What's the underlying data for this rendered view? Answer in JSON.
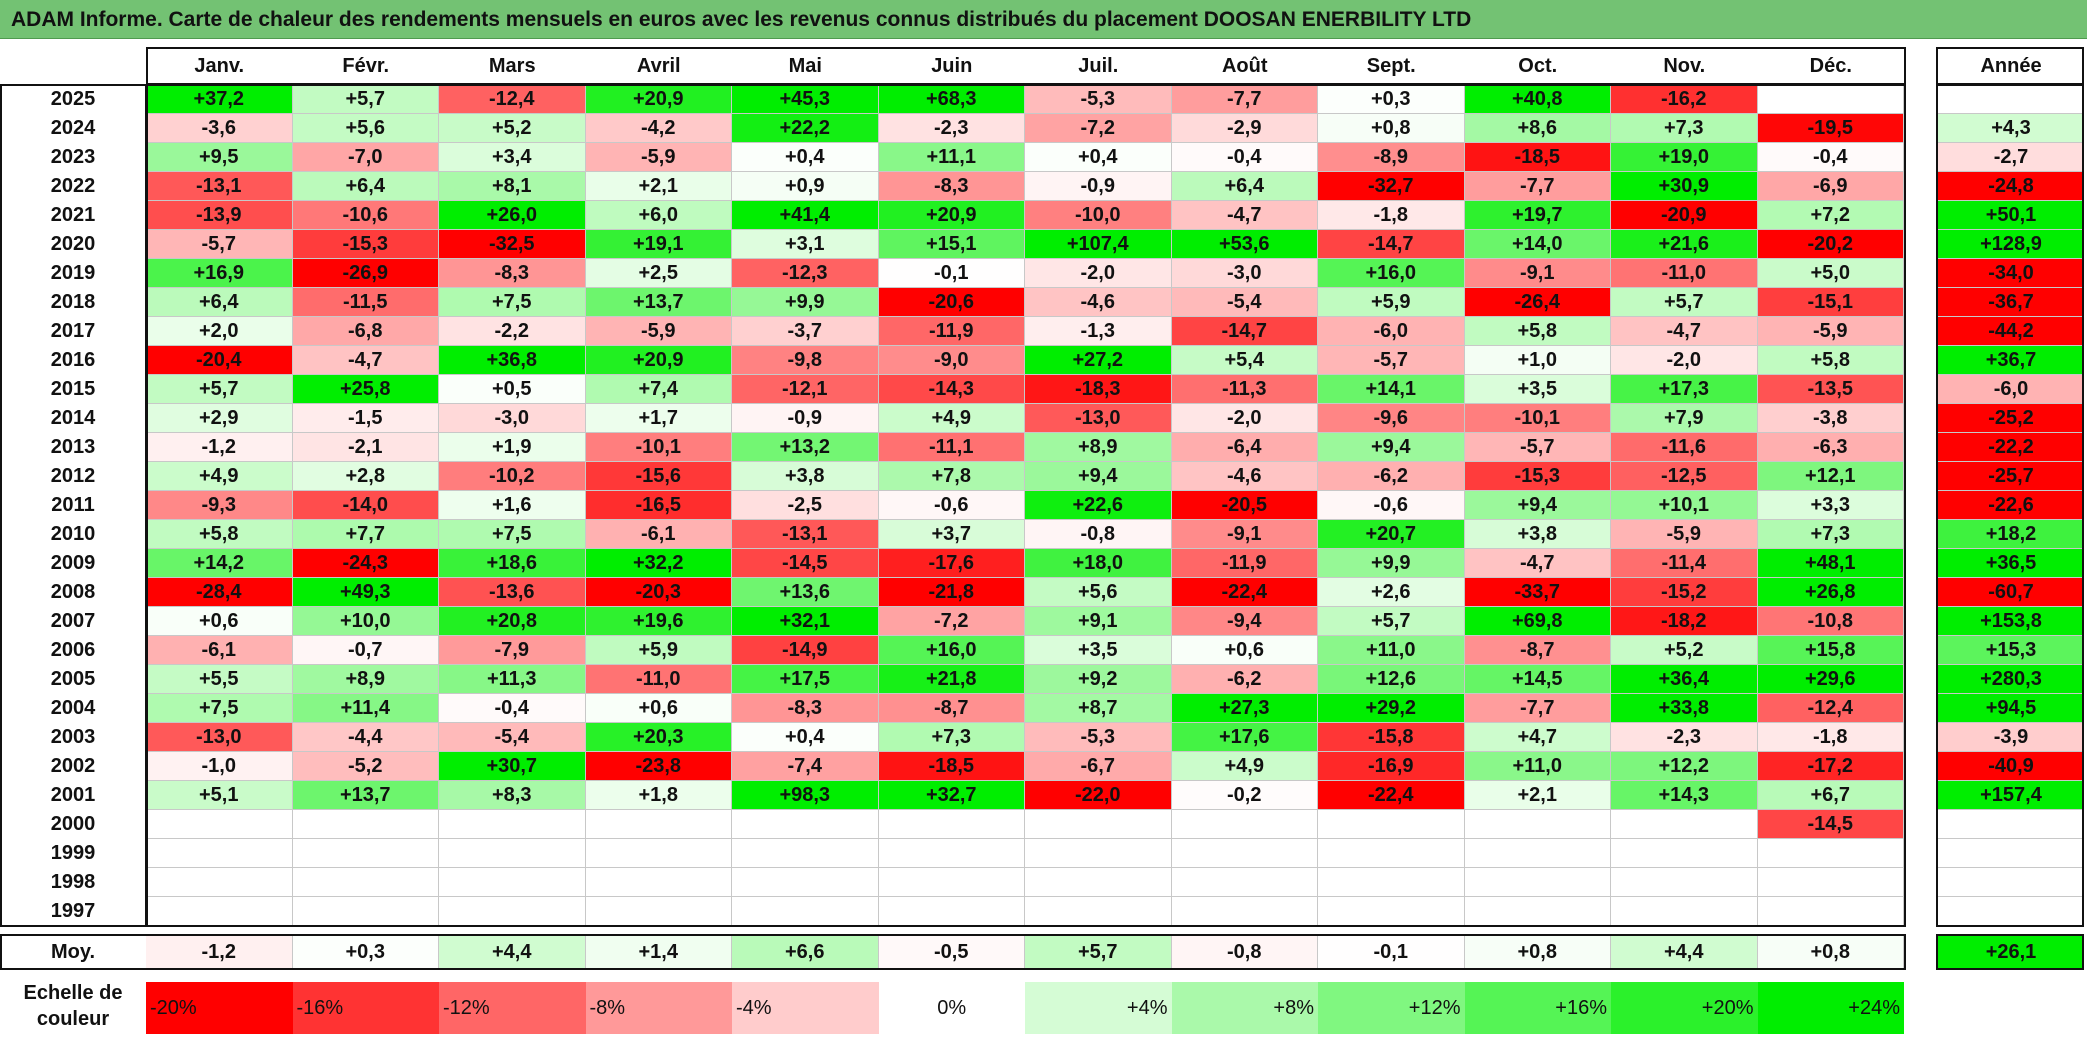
{
  "title": "ADAM Informe. Carte de chaleur des rendements mensuels en euros avec les revenus connus distribués du placement DOOSAN ENERBILITY LTD",
  "colors": {
    "title_bg": "#73c273",
    "red_max": "#ff0000",
    "green_max": "#00ee00",
    "neutral": "#ffffff"
  },
  "chart_data": {
    "type": "heatmap",
    "title": "ADAM Informe. Carte de chaleur des rendements mensuels en euros avec les revenus connus distribués du placement DOOSAN ENERBILITY LTD",
    "months": [
      "Janv.",
      "Févr.",
      "Mars",
      "Avril",
      "Mai",
      "Juin",
      "Juil.",
      "Août",
      "Sept.",
      "Oct.",
      "Nov.",
      "Déc."
    ],
    "year_header": "Année",
    "rows": [
      {
        "year": "2025",
        "values": [
          "+37,2",
          "+5,7",
          "-12,4",
          "+20,9",
          "+45,3",
          "+68,3",
          "-5,3",
          "-7,7",
          "+0,3",
          "+40,8",
          "-16,2",
          ""
        ],
        "annual": ""
      },
      {
        "year": "2024",
        "values": [
          "-3,6",
          "+5,6",
          "+5,2",
          "-4,2",
          "+22,2",
          "-2,3",
          "-7,2",
          "-2,9",
          "+0,8",
          "+8,6",
          "+7,3",
          "-19,5"
        ],
        "annual": "+4,3"
      },
      {
        "year": "2023",
        "values": [
          "+9,5",
          "-7,0",
          "+3,4",
          "-5,9",
          "+0,4",
          "+11,1",
          "+0,4",
          "-0,4",
          "-8,9",
          "-18,5",
          "+19,0",
          "-0,4"
        ],
        "annual": "-2,7"
      },
      {
        "year": "2022",
        "values": [
          "-13,1",
          "+6,4",
          "+8,1",
          "+2,1",
          "+0,9",
          "-8,3",
          "-0,9",
          "+6,4",
          "-32,7",
          "-7,7",
          "+30,9",
          "-6,9"
        ],
        "annual": "-24,8"
      },
      {
        "year": "2021",
        "values": [
          "-13,9",
          "-10,6",
          "+26,0",
          "+6,0",
          "+41,4",
          "+20,9",
          "-10,0",
          "-4,7",
          "-1,8",
          "+19,7",
          "-20,9",
          "+7,2"
        ],
        "annual": "+50,1"
      },
      {
        "year": "2020",
        "values": [
          "-5,7",
          "-15,3",
          "-32,5",
          "+19,1",
          "+3,1",
          "+15,1",
          "+107,4",
          "+53,6",
          "-14,7",
          "+14,0",
          "+21,6",
          "-20,2"
        ],
        "annual": "+128,9"
      },
      {
        "year": "2019",
        "values": [
          "+16,9",
          "-26,9",
          "-8,3",
          "+2,5",
          "-12,3",
          "-0,1",
          "-2,0",
          "-3,0",
          "+16,0",
          "-9,1",
          "-11,0",
          "+5,0"
        ],
        "annual": "-34,0"
      },
      {
        "year": "2018",
        "values": [
          "+6,4",
          "-11,5",
          "+7,5",
          "+13,7",
          "+9,9",
          "-20,6",
          "-4,6",
          "-5,4",
          "+5,9",
          "-26,4",
          "+5,7",
          "-15,1"
        ],
        "annual": "-36,7"
      },
      {
        "year": "2017",
        "values": [
          "+2,0",
          "-6,8",
          "-2,2",
          "-5,9",
          "-3,7",
          "-11,9",
          "-1,3",
          "-14,7",
          "-6,0",
          "+5,8",
          "-4,7",
          "-5,9"
        ],
        "annual": "-44,2"
      },
      {
        "year": "2016",
        "values": [
          "-20,4",
          "-4,7",
          "+36,8",
          "+20,9",
          "-9,8",
          "-9,0",
          "+27,2",
          "+5,4",
          "-5,7",
          "+1,0",
          "-2,0",
          "+5,8"
        ],
        "annual": "+36,7"
      },
      {
        "year": "2015",
        "values": [
          "+5,7",
          "+25,8",
          "+0,5",
          "+7,4",
          "-12,1",
          "-14,3",
          "-18,3",
          "-11,3",
          "+14,1",
          "+3,5",
          "+17,3",
          "-13,5"
        ],
        "annual": "-6,0"
      },
      {
        "year": "2014",
        "values": [
          "+2,9",
          "-1,5",
          "-3,0",
          "+1,7",
          "-0,9",
          "+4,9",
          "-13,0",
          "-2,0",
          "-9,6",
          "-10,1",
          "+7,9",
          "-3,8"
        ],
        "annual": "-25,2"
      },
      {
        "year": "2013",
        "values": [
          "-1,2",
          "-2,1",
          "+1,9",
          "-10,1",
          "+13,2",
          "-11,1",
          "+8,9",
          "-6,4",
          "+9,4",
          "-5,7",
          "-11,6",
          "-6,3"
        ],
        "annual": "-22,2"
      },
      {
        "year": "2012",
        "values": [
          "+4,9",
          "+2,8",
          "-10,2",
          "-15,6",
          "+3,8",
          "+7,8",
          "+9,4",
          "-4,6",
          "-6,2",
          "-15,3",
          "-12,5",
          "+12,1"
        ],
        "annual": "-25,7"
      },
      {
        "year": "2011",
        "values": [
          "-9,3",
          "-14,0",
          "+1,6",
          "-16,5",
          "-2,5",
          "-0,6",
          "+22,6",
          "-20,5",
          "-0,6",
          "+9,4",
          "+10,1",
          "+3,3"
        ],
        "annual": "-22,6"
      },
      {
        "year": "2010",
        "values": [
          "+5,8",
          "+7,7",
          "+7,5",
          "-6,1",
          "-13,1",
          "+3,7",
          "-0,8",
          "-9,1",
          "+20,7",
          "+3,8",
          "-5,9",
          "+7,3"
        ],
        "annual": "+18,2"
      },
      {
        "year": "2009",
        "values": [
          "+14,2",
          "-24,3",
          "+18,6",
          "+32,2",
          "-14,5",
          "-17,6",
          "+18,0",
          "-11,9",
          "+9,9",
          "-4,7",
          "-11,4",
          "+48,1"
        ],
        "annual": "+36,5"
      },
      {
        "year": "2008",
        "values": [
          "-28,4",
          "+49,3",
          "-13,6",
          "-20,3",
          "+13,6",
          "-21,8",
          "+5,6",
          "-22,4",
          "+2,6",
          "-33,7",
          "-15,2",
          "+26,8"
        ],
        "annual": "-60,7"
      },
      {
        "year": "2007",
        "values": [
          "+0,6",
          "+10,0",
          "+20,8",
          "+19,6",
          "+32,1",
          "-7,2",
          "+9,1",
          "-9,4",
          "+5,7",
          "+69,8",
          "-18,2",
          "-10,8"
        ],
        "annual": "+153,8"
      },
      {
        "year": "2006",
        "values": [
          "-6,1",
          "-0,7",
          "-7,9",
          "+5,9",
          "-14,9",
          "+16,0",
          "+3,5",
          "+0,6",
          "+11,0",
          "-8,7",
          "+5,2",
          "+15,8"
        ],
        "annual": "+15,3"
      },
      {
        "year": "2005",
        "values": [
          "+5,5",
          "+8,9",
          "+11,3",
          "-11,0",
          "+17,5",
          "+21,8",
          "+9,2",
          "-6,2",
          "+12,6",
          "+14,5",
          "+36,4",
          "+29,6"
        ],
        "annual": "+280,3"
      },
      {
        "year": "2004",
        "values": [
          "+7,5",
          "+11,4",
          "-0,4",
          "+0,6",
          "-8,3",
          "-8,7",
          "+8,7",
          "+27,3",
          "+29,2",
          "-7,7",
          "+33,8",
          "-12,4"
        ],
        "annual": "+94,5"
      },
      {
        "year": "2003",
        "values": [
          "-13,0",
          "-4,4",
          "-5,4",
          "+20,3",
          "+0,4",
          "+7,3",
          "-5,3",
          "+17,6",
          "-15,8",
          "+4,7",
          "-2,3",
          "-1,8"
        ],
        "annual": "-3,9"
      },
      {
        "year": "2002",
        "values": [
          "-1,0",
          "-5,2",
          "+30,7",
          "-23,8",
          "-7,4",
          "-18,5",
          "-6,7",
          "+4,9",
          "-16,9",
          "+11,0",
          "+12,2",
          "-17,2"
        ],
        "annual": "-40,9"
      },
      {
        "year": "2001",
        "values": [
          "+5,1",
          "+13,7",
          "+8,3",
          "+1,8",
          "+98,3",
          "+32,7",
          "-22,0",
          "-0,2",
          "-22,4",
          "+2,1",
          "+14,3",
          "+6,7"
        ],
        "annual": "+157,4"
      },
      {
        "year": "2000",
        "values": [
          "",
          "",
          "",
          "",
          "",
          "",
          "",
          "",
          "",
          "",
          "",
          "-14,5"
        ],
        "annual": ""
      },
      {
        "year": "1999",
        "values": [
          "",
          "",
          "",
          "",
          "",
          "",
          "",
          "",
          "",
          "",
          "",
          ""
        ],
        "annual": ""
      },
      {
        "year": "1998",
        "values": [
          "",
          "",
          "",
          "",
          "",
          "",
          "",
          "",
          "",
          "",
          "",
          ""
        ],
        "annual": ""
      },
      {
        "year": "1997",
        "values": [
          "",
          "",
          "",
          "",
          "",
          "",
          "",
          "",
          "",
          "",
          "",
          ""
        ],
        "annual": ""
      }
    ],
    "average": {
      "label": "Moy.",
      "values": [
        "-1,2",
        "+0,3",
        "+4,4",
        "+1,4",
        "+6,6",
        "-0,5",
        "+5,7",
        "-0,8",
        "-0,1",
        "+0,8",
        "+4,4",
        "+0,8"
      ],
      "annual": "+26,1"
    },
    "legend": {
      "label": "Echelle de couleur",
      "items": [
        "-20%",
        "-16%",
        "-12%",
        "-8%",
        "-4%",
        "0%",
        "+4%",
        "+8%",
        "+12%",
        "+16%",
        "+20%",
        "+24%"
      ]
    },
    "color_scale": {
      "min": -20,
      "max": 24
    }
  }
}
